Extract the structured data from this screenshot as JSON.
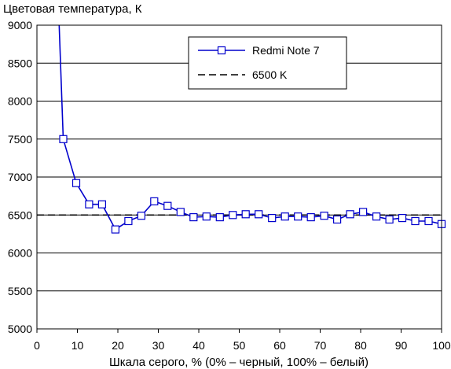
{
  "chart_data": {
    "type": "line",
    "ylabel": "Цветовая температура, К",
    "xlabel": "Шкала серого, % (0% – черный, 100% – белый)",
    "xlim": [
      0,
      100
    ],
    "ylim": [
      5000,
      9000
    ],
    "xticks": [
      0,
      10,
      20,
      30,
      40,
      50,
      60,
      70,
      80,
      90,
      100
    ],
    "yticks": [
      5000,
      5500,
      6000,
      6500,
      7000,
      7500,
      8000,
      8500,
      9000
    ],
    "grid": "horizontal",
    "legend_position": "top-right",
    "series": [
      {
        "name": "Redmi Note 7",
        "color": "#0000cc",
        "marker": "square",
        "x": [
          5.5,
          6.5,
          9.7,
          12.9,
          16.1,
          19.4,
          22.6,
          25.8,
          29.0,
          32.3,
          35.5,
          38.7,
          41.9,
          45.2,
          48.4,
          51.6,
          54.8,
          58.1,
          61.3,
          64.5,
          67.7,
          71.0,
          74.2,
          77.4,
          80.6,
          83.9,
          87.1,
          90.3,
          93.5,
          96.8,
          100.0
        ],
        "y": [
          9000,
          7500,
          6920,
          6640,
          6640,
          6310,
          6420,
          6490,
          6680,
          6620,
          6540,
          6470,
          6480,
          6470,
          6500,
          6510,
          6510,
          6460,
          6480,
          6480,
          6470,
          6490,
          6440,
          6510,
          6540,
          6480,
          6440,
          6460,
          6420,
          6420,
          6380
        ],
        "markers_from_index": 1
      },
      {
        "name": "6500 K",
        "color": "#000000",
        "dash": true,
        "x": [
          0,
          100
        ],
        "y": [
          6500,
          6500
        ]
      }
    ]
  }
}
